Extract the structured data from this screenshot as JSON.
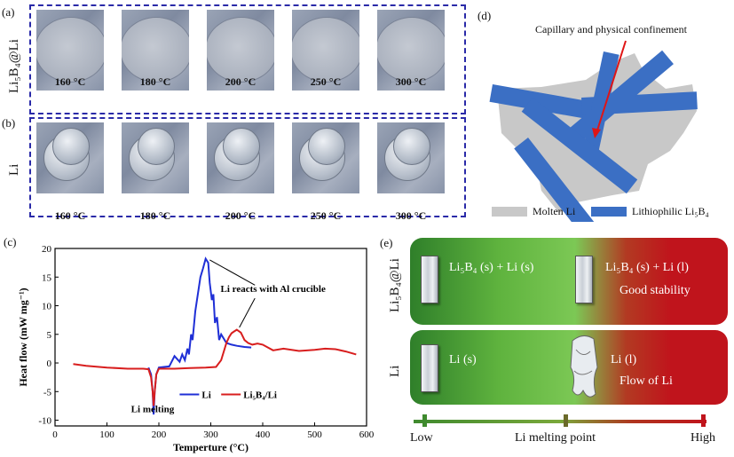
{
  "panels": {
    "a": {
      "label": "(a)",
      "row_label": "Li₅B₄@Li",
      "temps": [
        "160 °C",
        "180 °C",
        "200 °C",
        "250 °C",
        "300 °C"
      ]
    },
    "b": {
      "label": "(b)",
      "row_label": "Li",
      "temps": [
        "160 °C",
        "180 °C",
        "200 °C",
        "250 °C",
        "300 °C"
      ]
    },
    "c": {
      "label": "(c)"
    },
    "d": {
      "label": "(d)",
      "annotation": "Capillary and physical confinement",
      "legend": [
        {
          "label": "Molten Li",
          "color": "#c8c8c8"
        },
        {
          "label": "Lithiophilic Li₅B₄",
          "color": "#3b6fc4"
        }
      ]
    },
    "e": {
      "label": "(e)",
      "row1_label": "Li₅B₄@Li",
      "row1_left": "Li₅B₄ (s) + Li (s)",
      "row1_right_a": "Li₅B₄ (s) + Li (l)",
      "row1_right_b": "Good stability",
      "row2_label": "Li",
      "row2_left": "Li (s)",
      "row2_right_a": "Li (l)",
      "row2_right_b": "Flow of Li",
      "scale": {
        "low": "Low",
        "mid": "Li melting point",
        "high": "High"
      }
    }
  },
  "chart_data": {
    "type": "line",
    "xlabel": "Temperture (°C)",
    "ylabel": "Heat flow (mW mg⁻¹)",
    "xlim": [
      0,
      600
    ],
    "ylim": [
      -11,
      20
    ],
    "xticks": [
      0,
      100,
      200,
      300,
      400,
      500,
      600
    ],
    "yticks": [
      -10,
      -5,
      0,
      5,
      10,
      15,
      20
    ],
    "annotations": [
      "Li melting",
      "Li reacts with Al crucible"
    ],
    "series": [
      {
        "name": "Li",
        "color": "#1f2fd6",
        "x": [
          180,
          185,
          188,
          190,
          192,
          195,
          200,
          210,
          220,
          230,
          240,
          245,
          250,
          255,
          258,
          262,
          265,
          270,
          275,
          280,
          285,
          290,
          295,
          298,
          302,
          305,
          308,
          312,
          316,
          320,
          330,
          340,
          350,
          365,
          378
        ],
        "y": [
          -0.8,
          -2,
          -5,
          -9,
          -5,
          -2,
          -0.8,
          -0.7,
          -0.6,
          1.2,
          0.2,
          1.5,
          0.5,
          2.5,
          1.5,
          5,
          4,
          9,
          12,
          15,
          16.5,
          18.2,
          17.5,
          14,
          11,
          12,
          7,
          8,
          4,
          5,
          3.5,
          3.2,
          3,
          2.8,
          2.7
        ]
      },
      {
        "name": "Li₅B₄/Li",
        "color": "#d81e1e",
        "x": [
          35,
          60,
          100,
          140,
          170,
          180,
          185,
          188,
          190,
          192,
          195,
          200,
          230,
          260,
          290,
          310,
          320,
          330,
          335,
          340,
          345,
          350,
          358,
          365,
          372,
          380,
          390,
          400,
          420,
          440,
          470,
          500,
          520,
          540,
          560,
          580
        ],
        "y": [
          -0.2,
          -0.5,
          -0.8,
          -1,
          -1,
          -1.1,
          -2.5,
          -5,
          -7.5,
          -5,
          -2,
          -1,
          -1,
          -0.9,
          -0.8,
          -0.7,
          0.5,
          3.5,
          4.5,
          5.2,
          5.5,
          5.8,
          5.3,
          4,
          3.5,
          3.2,
          3.4,
          3.2,
          2.2,
          2.5,
          2.1,
          2.3,
          2.5,
          2.4,
          2.0,
          1.5
        ]
      }
    ]
  }
}
